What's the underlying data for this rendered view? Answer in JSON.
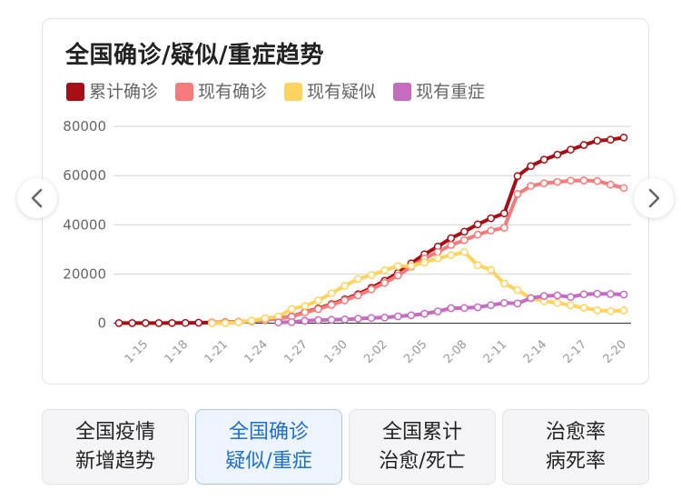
{
  "card": {
    "title": "全国确诊/疑似/重症趋势"
  },
  "legend": [
    {
      "label": "累计确诊",
      "color": "#a50f15"
    },
    {
      "label": "现有确诊",
      "color": "#f77b7b"
    },
    {
      "label": "现有疑似",
      "color": "#fcd45f"
    },
    {
      "label": "现有重症",
      "color": "#c56cc1"
    }
  ],
  "nav": {
    "prev_icon": "chevron-left-icon",
    "next_icon": "chevron-right-icon"
  },
  "tabs": [
    {
      "line1": "全国疫情",
      "line2": "新增趋势",
      "active": "false"
    },
    {
      "line1": "全国确诊",
      "line2": "疑似/重症",
      "active": "true"
    },
    {
      "line1": "全国累计",
      "line2": "治愈/死亡",
      "active": "false"
    },
    {
      "line1": "治愈率",
      "line2": "病死率",
      "active": "false"
    }
  ],
  "chart_data": {
    "type": "line",
    "title": "全国确诊/疑似/重症趋势",
    "xlabel": "",
    "ylabel": "",
    "ylim": [
      0,
      80000
    ],
    "yticks": [
      0,
      20000,
      40000,
      60000,
      80000
    ],
    "grid": true,
    "legend_position": "top",
    "x": [
      "1-13",
      "1-14",
      "1-15",
      "1-16",
      "1-17",
      "1-18",
      "1-19",
      "1-20",
      "1-21",
      "1-22",
      "1-23",
      "1-24",
      "1-25",
      "1-26",
      "1-27",
      "1-28",
      "1-29",
      "1-30",
      "1-31",
      "2-01",
      "2-02",
      "2-03",
      "2-04",
      "2-05",
      "2-06",
      "2-07",
      "2-08",
      "2-09",
      "2-10",
      "2-11",
      "2-12",
      "2-13",
      "2-14",
      "2-15",
      "2-16",
      "2-17",
      "2-18",
      "2-19",
      "2-20"
    ],
    "xtick_labels": [
      "1-15",
      "1-18",
      "1-21",
      "1-24",
      "1-27",
      "1-30",
      "2-02",
      "2-05",
      "2-08",
      "2-11",
      "2-14",
      "2-17",
      "2-20"
    ],
    "series": [
      {
        "name": "累计确诊",
        "color": "#a50f15",
        "values": [
          41,
          41,
          41,
          45,
          62,
          121,
          198,
          291,
          440,
          571,
          830,
          1287,
          1975,
          2744,
          4515,
          5974,
          7711,
          9692,
          11791,
          14380,
          17205,
          20438,
          24324,
          28018,
          31161,
          34546,
          37198,
          40171,
          42638,
          44653,
          59804,
          63851,
          66492,
          68500,
          70548,
          72436,
          74185,
          74576,
          75465
        ]
      },
      {
        "name": "现有确诊",
        "color": "#f77b7b",
        "values": [
          null,
          null,
          null,
          null,
          null,
          null,
          null,
          260,
          403,
          526,
          771,
          1208,
          1870,
          2613,
          4349,
          5739,
          7417,
          9308,
          11289,
          13748,
          16369,
          19381,
          22942,
          26302,
          28985,
          31774,
          33738,
          35982,
          37626,
          38800,
          52526,
          55748,
          56873,
          57416,
          57934,
          58016,
          57805,
          56303,
          54965
        ]
      },
      {
        "name": "现有疑似",
        "color": "#fcd45f",
        "values": [
          null,
          null,
          null,
          null,
          null,
          null,
          null,
          54,
          37,
          393,
          1072,
          1965,
          2684,
          5794,
          6973,
          9239,
          12167,
          15238,
          17988,
          19544,
          21558,
          23214,
          23260,
          24702,
          26359,
          27657,
          28942,
          23589,
          21675,
          16067,
          13435,
          10109,
          8969,
          8228,
          7264,
          6242,
          5248,
          4922,
          5206
        ]
      },
      {
        "name": "现有重症",
        "color": "#c56cc1",
        "values": [
          null,
          null,
          null,
          null,
          null,
          null,
          null,
          null,
          null,
          null,
          null,
          null,
          324,
          461,
          976,
          1239,
          1370,
          1527,
          1795,
          2110,
          2296,
          2788,
          3219,
          3859,
          4821,
          6101,
          6188,
          6484,
          7333,
          8204,
          8030,
          10204,
          11053,
          11272,
          10644,
          11741,
          11977,
          11864,
          11633
        ]
      }
    ]
  }
}
